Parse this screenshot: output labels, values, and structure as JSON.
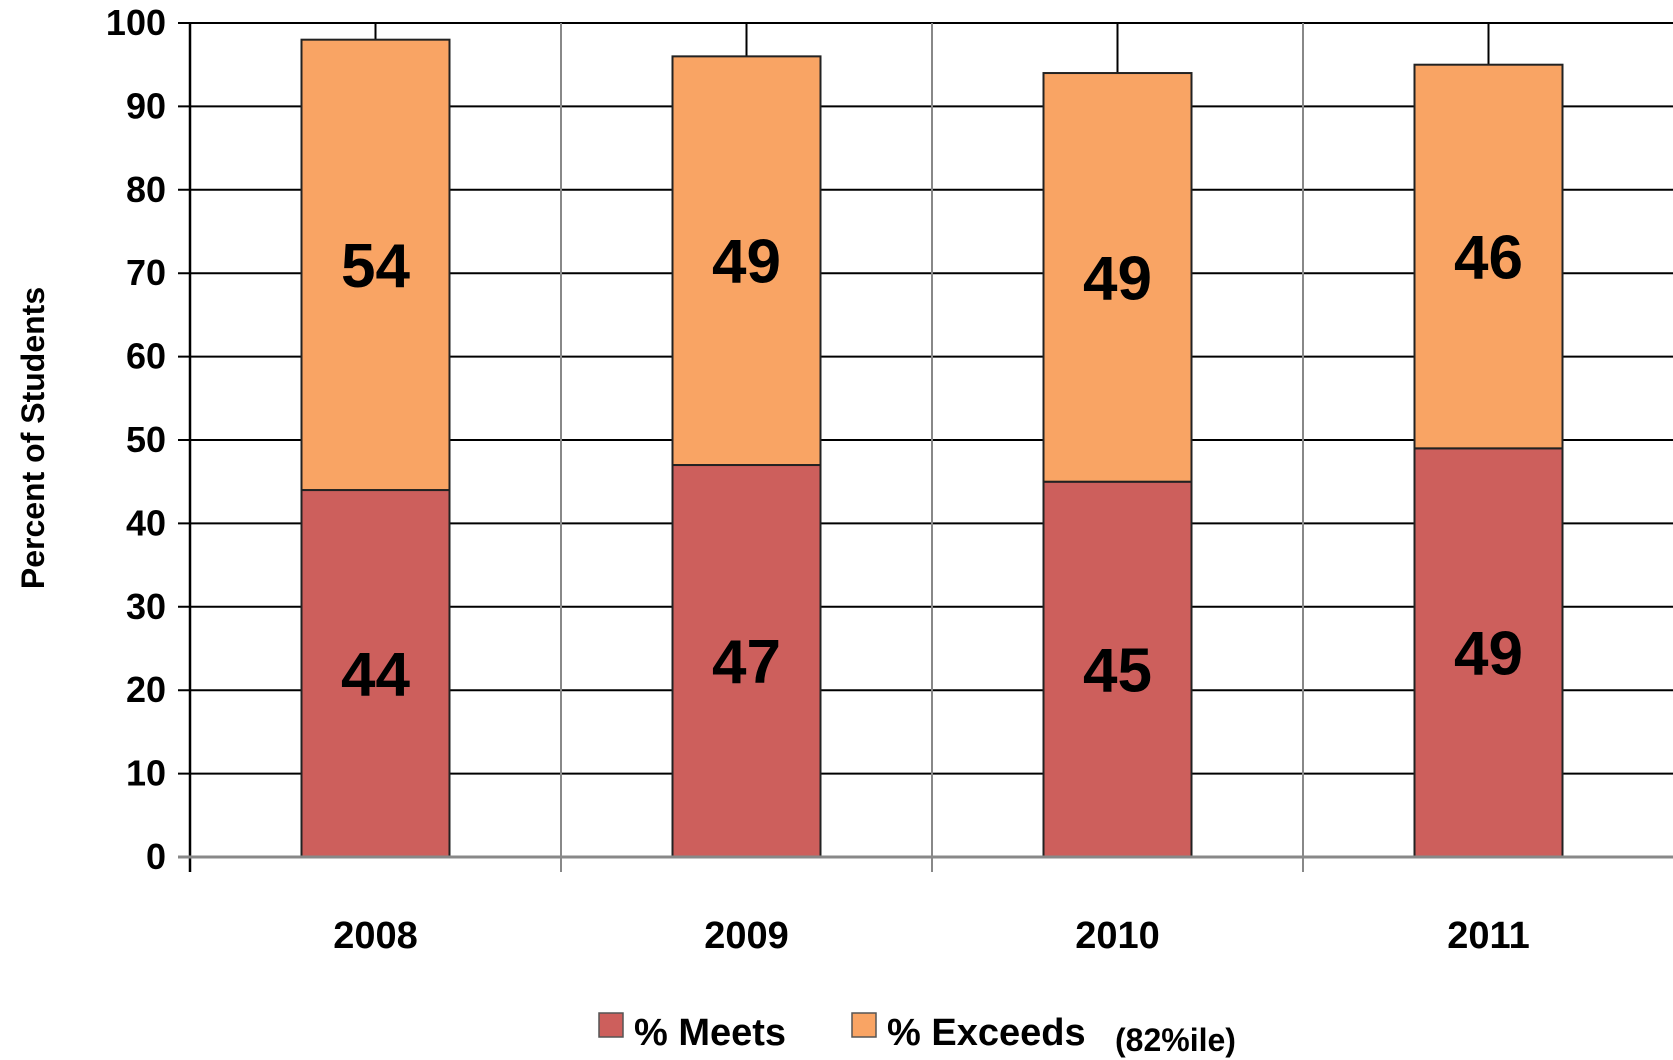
{
  "chart_data": {
    "type": "bar",
    "stacked": true,
    "categories": [
      "2008",
      "2009",
      "2010",
      "2011"
    ],
    "series": [
      {
        "name": "% Meets",
        "values": [
          44,
          47,
          45,
          49
        ],
        "color": "#cd5f5c"
      },
      {
        "name": "% Exceeds",
        "values": [
          54,
          49,
          49,
          46
        ],
        "color": "#f9a464"
      }
    ],
    "ylabel": "Percent of Students",
    "ylim": [
      0,
      100
    ],
    "ytick_step": 10,
    "yticks": [
      "0",
      "10",
      "20",
      "30",
      "40",
      "50",
      "60",
      "70",
      "80",
      "90",
      "100"
    ],
    "grid": true,
    "data_labels": true,
    "legend": {
      "placement": "bottom",
      "note": "(82%ile)"
    }
  }
}
